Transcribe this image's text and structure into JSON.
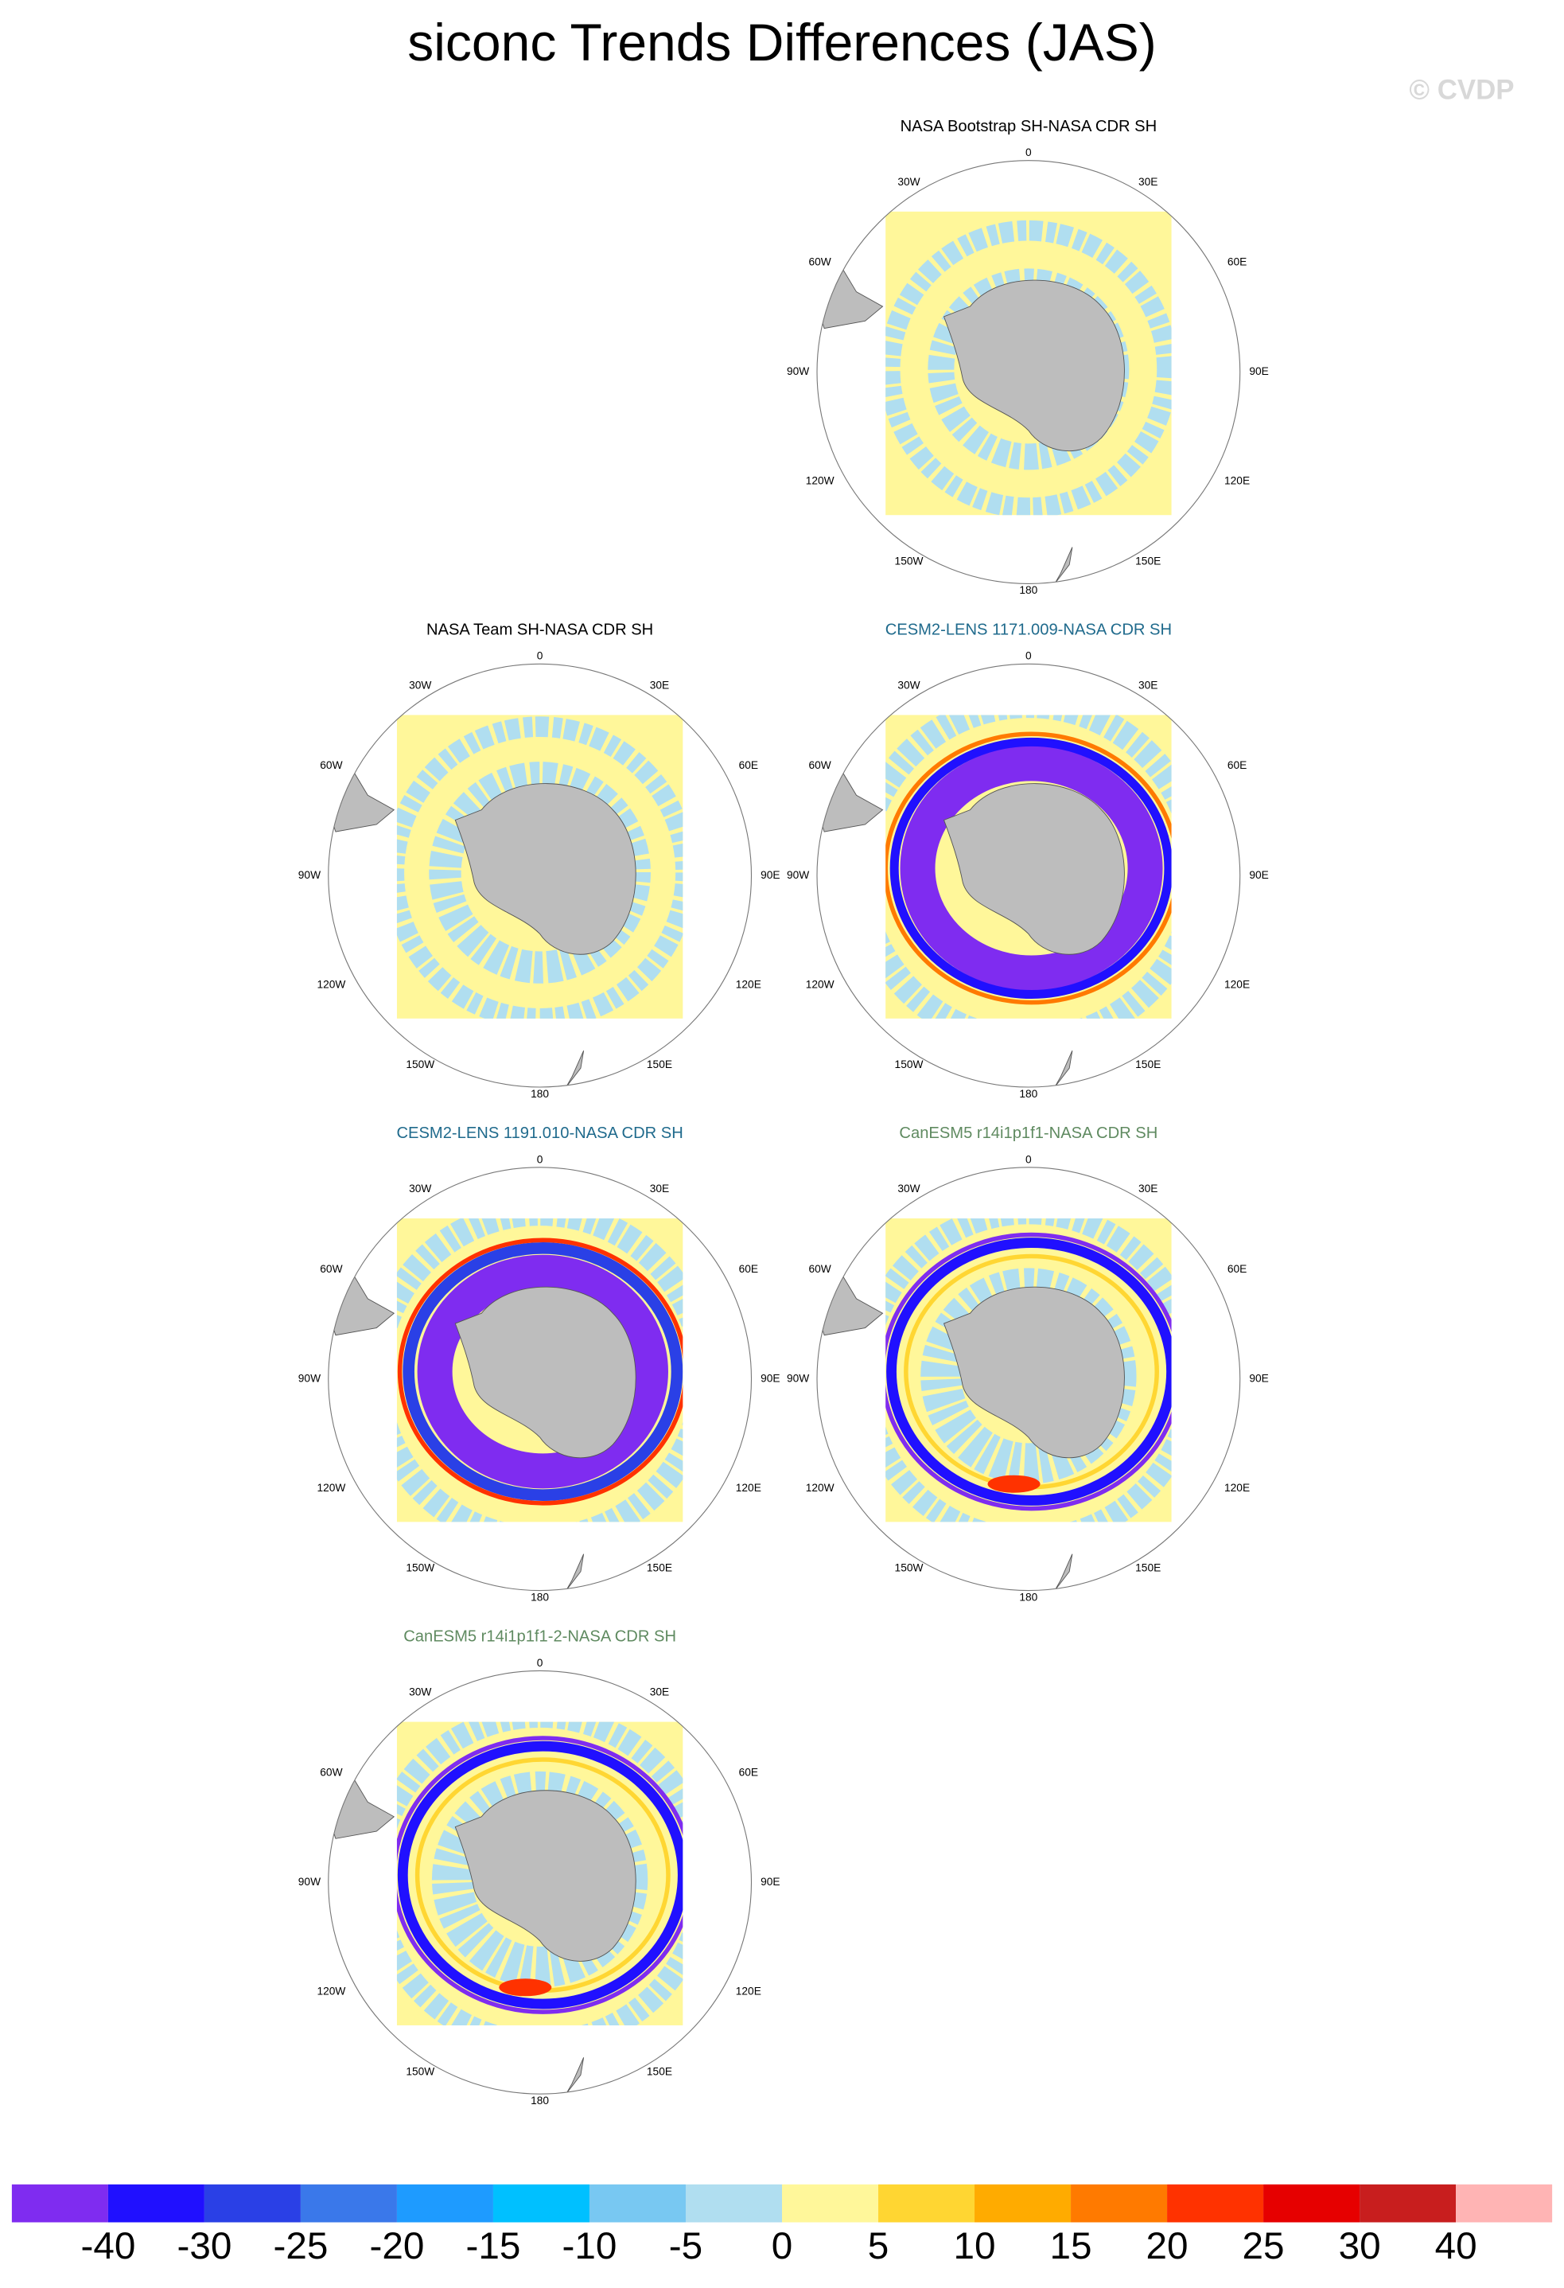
{
  "header": {
    "title": "siconc Trends Differences (JAS)",
    "watermark": "© CVDP"
  },
  "longitude_labels": [
    "0",
    "30E",
    "60E",
    "90E",
    "120E",
    "150E",
    "180",
    "150W",
    "120W",
    "90W",
    "60W",
    "30W"
  ],
  "panels": [
    {
      "title": "NASA Bootstrap SH-NASA CDR SH",
      "title_color": "#000000"
    },
    {
      "title": "NASA Team SH-NASA CDR SH",
      "title_color": "#000000"
    },
    {
      "title": "CESM2-LENS 1171.009-NASA CDR SH",
      "title_color": "#1f6a8c"
    },
    {
      "title": "CESM2-LENS 1191.010-NASA CDR SH",
      "title_color": "#1f6a8c"
    },
    {
      "title": "CanESM5 r14i1p1f1-NASA CDR SH",
      "title_color": "#5f8a60"
    },
    {
      "title": "CanESM5 r14i1p1f1-2-NASA CDR SH",
      "title_color": "#5f8a60"
    }
  ],
  "colorbar": {
    "colors": [
      "#7f2cf0",
      "#2010ff",
      "#2a40e6",
      "#3a78ea",
      "#1e9bff",
      "#00c0ff",
      "#78c8f2",
      "#b0def0",
      "#fff79a",
      "#ffd632",
      "#ffab00",
      "#ff7a00",
      "#ff3200",
      "#e60000",
      "#c81e1e",
      "#ffb4b4"
    ],
    "levels": [
      -40,
      -30,
      -25,
      -20,
      -15,
      -10,
      -5,
      0,
      5,
      10,
      15,
      20,
      25,
      30,
      40
    ]
  }
}
